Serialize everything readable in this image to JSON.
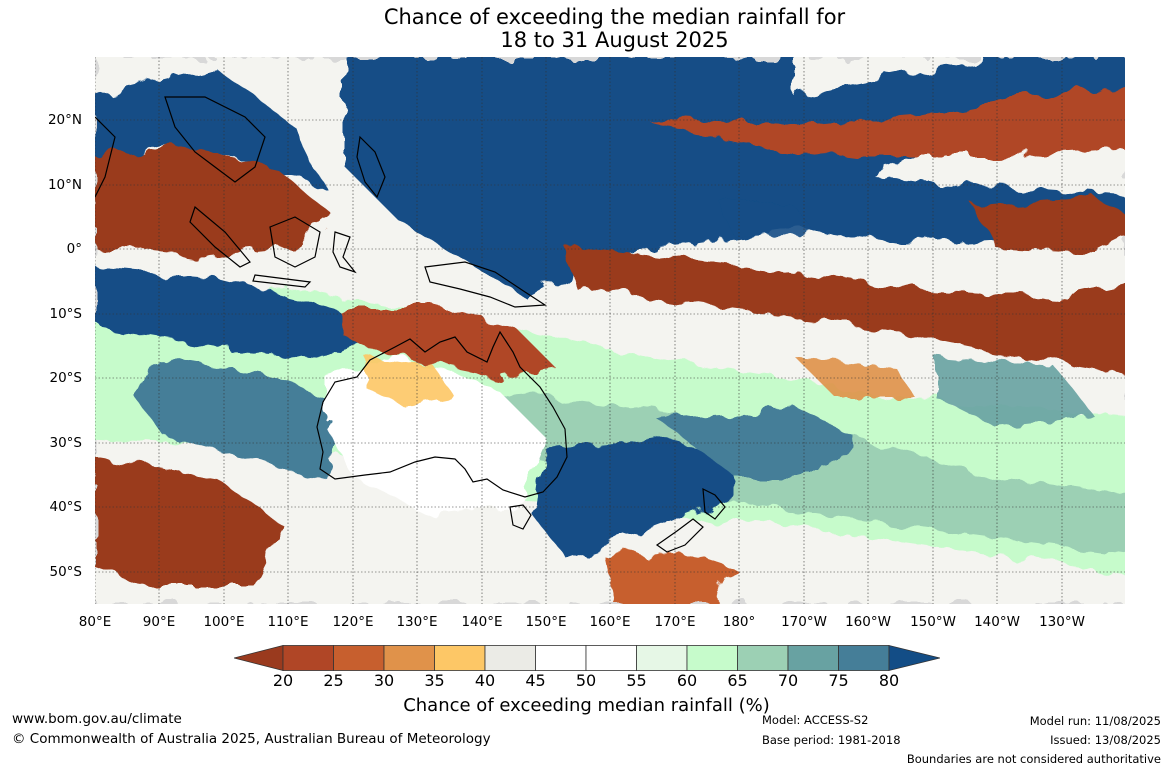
{
  "title_line1": "Chance of exceeding the median rainfall for",
  "title_line2": "18 to 31 August 2025",
  "map": {
    "lat_labels": [
      "20°N",
      "10°N",
      "0°",
      "10°S",
      "20°S",
      "30°S",
      "40°S",
      "50°S"
    ],
    "lon_labels": [
      "80°E",
      "90°E",
      "100°E",
      "110°E",
      "120°E",
      "130°E",
      "140°E",
      "150°E",
      "160°E",
      "170°E",
      "180°",
      "170°W",
      "160°W",
      "150°W",
      "140°W",
      "130°W"
    ],
    "extent": {
      "lon_min": 80,
      "lon_max": 240,
      "lat_min": -55,
      "lat_max": 30
    }
  },
  "colorbar": {
    "ticks": [
      "20",
      "25",
      "30",
      "35",
      "40",
      "45",
      "50",
      "55",
      "60",
      "65",
      "70",
      "75",
      "80"
    ],
    "colors": [
      "#9a3a1e",
      "#b04626",
      "#c75f2e",
      "#e0924a",
      "#fdc766",
      "#ebebe6",
      "#ffffff",
      "#ffffff",
      "#e6f7e6",
      "#c6fbcb",
      "#9cd0b4",
      "#68a2a2",
      "#457e98",
      "#134d86"
    ],
    "label": "Chance of exceeding median rainfall (%)"
  },
  "footer": {
    "website": "www.bom.gov.au/climate",
    "copyright": "© Commonwealth of Australia 2025, Australian Bureau of Meteorology",
    "model": "Model: ACCESS-S2",
    "base_period": "Base period: 1981-2018",
    "model_run": "Model run: 11/08/2025",
    "issued": "Issued: 13/08/2025",
    "disclaimer": "Boundaries are not considered authoritative"
  }
}
